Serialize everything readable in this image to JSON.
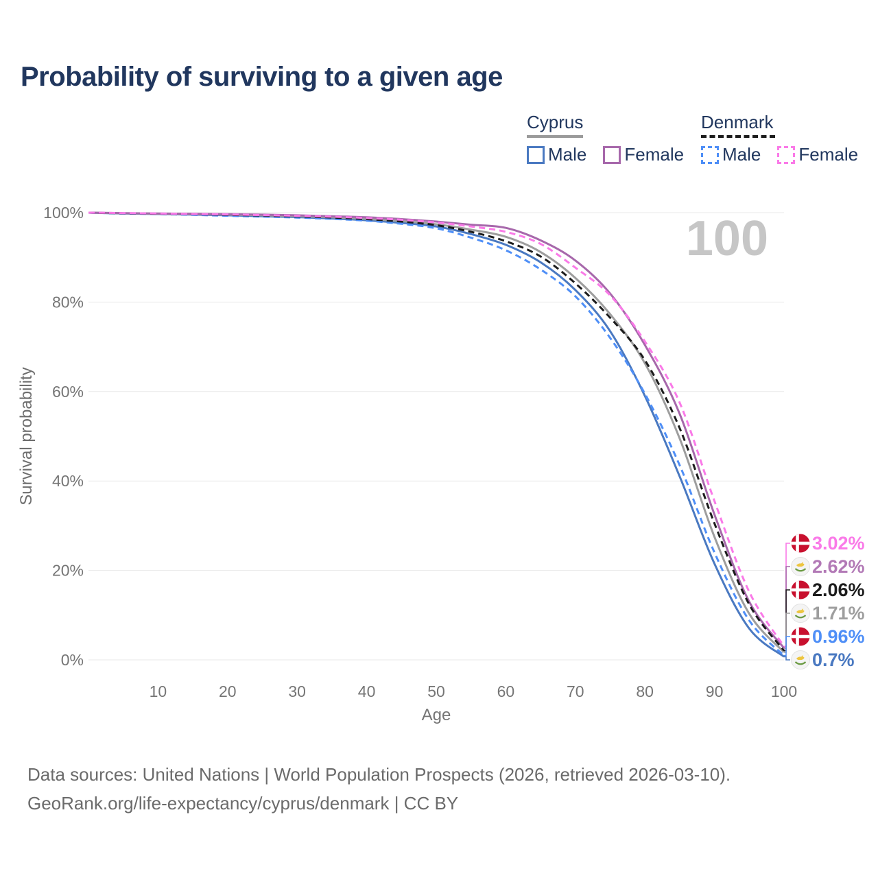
{
  "title": "Probability of surviving to a given age",
  "watermark_age": "100",
  "legend": {
    "groups": [
      {
        "label": "Cyprus",
        "line_style": "solid",
        "line_color": "#9a9a9a",
        "items": [
          {
            "label": "Male",
            "color": "#4a79c1"
          },
          {
            "label": "Female",
            "color": "#a768ab"
          }
        ]
      },
      {
        "label": "Denmark",
        "line_style": "dashed",
        "line_color": "#1c1c1c",
        "items": [
          {
            "label": "Male",
            "color": "#4f8ff7"
          },
          {
            "label": "Female",
            "color": "#fa7ae8"
          }
        ]
      }
    ]
  },
  "chart_data": {
    "type": "line",
    "title": "Probability of surviving to a given age",
    "xlabel": "Age",
    "ylabel": "Survival probability",
    "xlim": [
      0,
      100
    ],
    "ylim": [
      0,
      100
    ],
    "grid": "horizontal",
    "legend_position": "top-right",
    "xticks": [
      10,
      20,
      30,
      40,
      50,
      60,
      70,
      80,
      90,
      100
    ],
    "ytick_values": [
      0,
      20,
      40,
      60,
      80,
      100
    ],
    "ytick_labels": [
      "0%",
      "20%",
      "40%",
      "60%",
      "80%",
      "100%"
    ],
    "x": [
      0,
      5,
      10,
      15,
      20,
      25,
      30,
      35,
      40,
      45,
      50,
      55,
      60,
      65,
      70,
      75,
      80,
      85,
      90,
      95,
      100
    ],
    "series": [
      {
        "name": "Cyprus Male",
        "country": "Cyprus",
        "sex": "Male",
        "color": "#4a79c1",
        "dash": "solid",
        "end_label": "0.7%",
        "values": [
          100,
          99.8,
          99.7,
          99.55,
          99.4,
          99.2,
          99,
          98.7,
          98.3,
          97.7,
          96.9,
          95.2,
          92.8,
          88.9,
          82.7,
          73.5,
          59,
          41,
          21.5,
          7,
          0.7
        ]
      },
      {
        "name": "Cyprus Total",
        "country": "Cyprus",
        "sex": "Both",
        "color": "#9e9e9e",
        "dash": "solid",
        "end_label": "1.71%",
        "values": [
          100,
          99.85,
          99.75,
          99.65,
          99.55,
          99.4,
          99.2,
          98.95,
          98.6,
          98.1,
          97.4,
          96.2,
          94.6,
          91.2,
          85.4,
          77.3,
          66.3,
          49.5,
          27.5,
          10.3,
          1.71
        ]
      },
      {
        "name": "Cyprus Female",
        "country": "Cyprus",
        "sex": "Female",
        "color": "#a768ab",
        "dash": "solid",
        "end_label": "2.62%",
        "values": [
          100,
          99.9,
          99.8,
          99.75,
          99.65,
          99.55,
          99.4,
          99.2,
          98.95,
          98.55,
          98,
          97.3,
          96.6,
          93.8,
          89.3,
          81.9,
          70.4,
          55,
          32.5,
          13,
          2.62
        ]
      },
      {
        "name": "Denmark Male",
        "country": "Denmark",
        "sex": "Male",
        "color": "#4f8ff7",
        "dash": "dashed",
        "end_label": "0.96%",
        "values": [
          100,
          99.8,
          99.7,
          99.5,
          99.3,
          99.1,
          98.9,
          98.6,
          98.2,
          97.5,
          96.5,
          94.4,
          91.6,
          87.3,
          81.3,
          72,
          59.5,
          43.5,
          24,
          8.8,
          0.96
        ]
      },
      {
        "name": "Denmark Total",
        "country": "Denmark",
        "sex": "Both",
        "color": "#1c1c1c",
        "dash": "dashed",
        "end_label": "2.06%",
        "values": [
          100,
          99.85,
          99.75,
          99.65,
          99.5,
          99.35,
          99.15,
          98.9,
          98.55,
          98,
          97.2,
          95.7,
          93.6,
          90.2,
          84.2,
          76.5,
          67,
          51.8,
          30.5,
          12.4,
          2.06
        ]
      },
      {
        "name": "Denmark Female",
        "country": "Denmark",
        "sex": "Female",
        "color": "#fa7ae8",
        "dash": "dashed",
        "end_label": "3.02%",
        "values": [
          100,
          99.9,
          99.8,
          99.7,
          99.6,
          99.45,
          99.3,
          99.1,
          98.8,
          98.4,
          97.8,
          96.9,
          95.7,
          93,
          87.7,
          81.5,
          71.2,
          57.5,
          35.5,
          15.2,
          3.02
        ]
      }
    ],
    "end_labels": [
      {
        "flag": "denmark",
        "label": "3.02%",
        "color": "#fa7ae8"
      },
      {
        "flag": "cyprus",
        "label": "2.62%",
        "color": "#b279b6"
      },
      {
        "flag": "denmark",
        "label": "2.06%",
        "color": "#1c1c1c"
      },
      {
        "flag": "cyprus",
        "label": "1.71%",
        "color": "#9e9e9e"
      },
      {
        "flag": "denmark",
        "label": "0.96%",
        "color": "#4f8ff7"
      },
      {
        "flag": "cyprus",
        "label": "0.7%",
        "color": "#4a79c1"
      }
    ]
  },
  "footer": {
    "line1": "Data sources: United Nations | World Population Prospects (2026, retrieved 2026-03-10).",
    "line2": "GeoRank.org/life-expectancy/cyprus/denmark | CC BY"
  }
}
